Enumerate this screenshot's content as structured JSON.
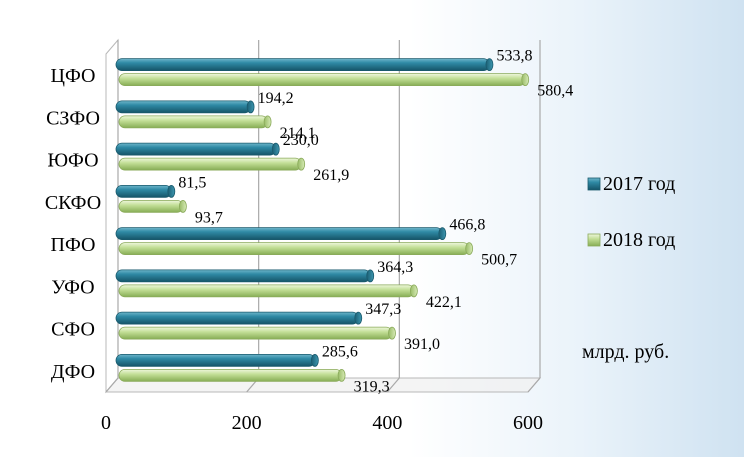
{
  "chart_data": {
    "type": "bar",
    "orientation": "horizontal",
    "style": "3d-cylinder",
    "categories": [
      "ЦФО",
      "СЗФО",
      "ЮФО",
      "СКФО",
      "ПФО",
      "УФО",
      "СФО",
      "ДФО"
    ],
    "series": [
      {
        "name": "2017 год",
        "color": "#2a7b93",
        "values": [
          533.8,
          194.2,
          230.0,
          81.5,
          466.8,
          364.3,
          347.3,
          285.6
        ],
        "labels": [
          "533,8",
          "194,2",
          "230,0",
          "81,5",
          "466,8",
          "364,3",
          "347,3",
          "285,6"
        ]
      },
      {
        "name": "2018 год",
        "color": "#b9d98c",
        "values": [
          580.4,
          214.1,
          261.9,
          93.7,
          500.7,
          422.1,
          391.0,
          319.3
        ],
        "labels": [
          "580,4",
          "214,1",
          "261,9",
          "93,7",
          "500,7",
          "422,1",
          "391,0",
          "319,3"
        ]
      }
    ],
    "xlim": [
      0,
      600
    ],
    "xticks": [
      "0",
      "200",
      "400",
      "600"
    ],
    "grid": true,
    "legend_position": "right",
    "unit_note": "млрд. руб.",
    "title": "",
    "xlabel": "",
    "ylabel": ""
  }
}
